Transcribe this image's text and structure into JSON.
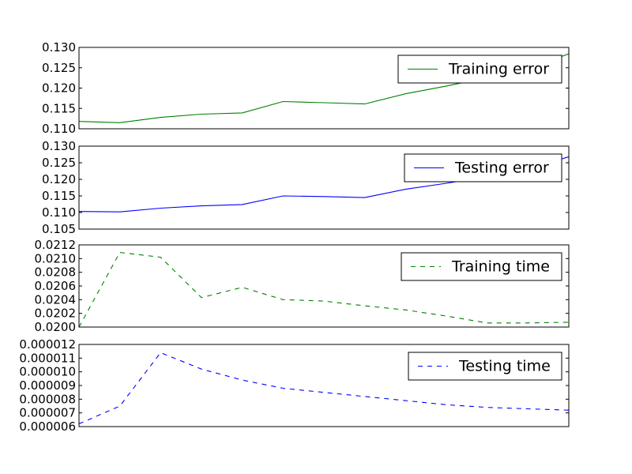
{
  "chart_data": [
    {
      "type": "line",
      "x": [
        0,
        1,
        2,
        3,
        4,
        5,
        6,
        7,
        8,
        9,
        10,
        11,
        12
      ],
      "series": [
        {
          "name": "Training error",
          "values": [
            0.1118,
            0.1115,
            0.1128,
            0.1136,
            0.1139,
            0.1167,
            0.1164,
            0.1161,
            0.1186,
            0.1205,
            0.1226,
            0.1248,
            0.1284
          ],
          "color": "#008000",
          "dash": "solid"
        }
      ],
      "ylim": [
        0.11,
        0.13
      ],
      "yticks": [
        "0.110",
        "0.115",
        "0.120",
        "0.125",
        "0.130"
      ],
      "legend_position": "top-right",
      "grid": false
    },
    {
      "type": "line",
      "x": [
        0,
        1,
        2,
        3,
        4,
        5,
        6,
        7,
        8,
        9,
        10,
        11,
        12
      ],
      "series": [
        {
          "name": "Testing error",
          "values": [
            0.1103,
            0.1102,
            0.1113,
            0.112,
            0.1124,
            0.115,
            0.1148,
            0.1145,
            0.117,
            0.1188,
            0.1208,
            0.123,
            0.1268
          ],
          "color": "#0000ff",
          "dash": "solid"
        }
      ],
      "ylim": [
        0.105,
        0.13
      ],
      "yticks": [
        "0.105",
        "0.110",
        "0.115",
        "0.120",
        "0.125",
        "0.130"
      ],
      "legend_position": "top-right",
      "grid": false
    },
    {
      "type": "line",
      "x": [
        0,
        1,
        2,
        3,
        4,
        5,
        6,
        7,
        8,
        9,
        10,
        11,
        12
      ],
      "series": [
        {
          "name": "Training time",
          "values": [
            0.02,
            0.02109,
            0.02102,
            0.02043,
            0.02058,
            0.0204,
            0.02038,
            0.02031,
            0.02025,
            0.02016,
            0.02006,
            0.02006,
            0.02007
          ],
          "color": "#008000",
          "dash": "dashed"
        }
      ],
      "ylim": [
        0.02,
        0.0212
      ],
      "yticks": [
        "0.0200",
        "0.0202",
        "0.0204",
        "0.0206",
        "0.0208",
        "0.0210",
        "0.0212"
      ],
      "legend_position": "top-right",
      "grid": false
    },
    {
      "type": "line",
      "x": [
        0,
        1,
        2,
        3,
        4,
        5,
        6,
        7,
        8,
        9,
        10,
        11,
        12
      ],
      "series": [
        {
          "name": "Testing time",
          "values": [
            6.2e-06,
            7.5e-06,
            1.14e-05,
            1.02e-05,
            9.4e-06,
            8.8e-06,
            8.5e-06,
            8.2e-06,
            7.9e-06,
            7.6e-06,
            7.4e-06,
            7.3e-06,
            7.2e-06
          ],
          "color": "#0000ff",
          "dash": "dashed"
        }
      ],
      "ylim": [
        6e-06,
        1.2e-05
      ],
      "yticks": [
        "0.000006",
        "0.000007",
        "0.000008",
        "0.000009",
        "0.000010",
        "0.000011",
        "0.000012"
      ],
      "legend_position": "top-right",
      "grid": false
    }
  ]
}
